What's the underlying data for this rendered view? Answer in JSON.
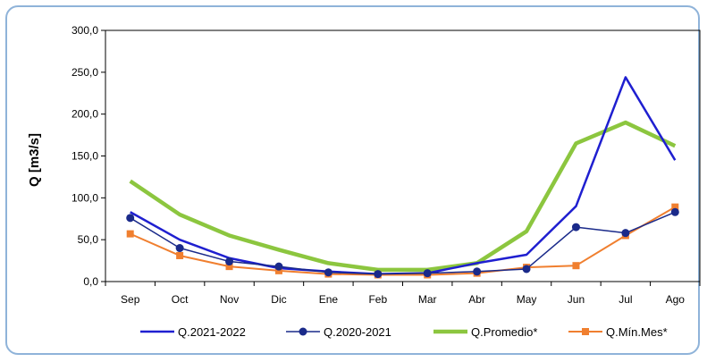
{
  "chart_data": {
    "type": "line",
    "ylabel": "Q [m3/s]",
    "ylim": [
      0,
      300
    ],
    "yticks": [
      "0,0",
      "50,0",
      "100,0",
      "150,0",
      "200,0",
      "250,0",
      "300,0"
    ],
    "categories": [
      "Sep",
      "Oct",
      "Nov",
      "Dic",
      "Ene",
      "Feb",
      "Mar",
      "Abr",
      "May",
      "Jun",
      "Jul",
      "Ago"
    ],
    "legend_position": "bottom",
    "grid": false,
    "series": [
      {
        "name": "Q.2021-2022",
        "color": "#1f1fd0",
        "marker": "none",
        "values": [
          83,
          50,
          28,
          16,
          12,
          9,
          10,
          22,
          32,
          90,
          244,
          145
        ]
      },
      {
        "name": "Q.2020-2021",
        "color": "#1a2a8a",
        "marker": "circle",
        "values": [
          76,
          40,
          24,
          18,
          11,
          9,
          10,
          12,
          15,
          65,
          58,
          83
        ]
      },
      {
        "name": "Q.Promedio*",
        "color": "#8cc63f",
        "marker": "none",
        "values": [
          120,
          80,
          55,
          38,
          22,
          14,
          14,
          22,
          60,
          165,
          190,
          162
        ]
      },
      {
        "name": "Q.Mín.Mes*",
        "color": "#f07f2f",
        "marker": "square",
        "values": [
          57,
          31,
          18,
          13,
          9,
          8,
          8,
          10,
          17,
          19,
          55,
          89
        ]
      }
    ]
  }
}
